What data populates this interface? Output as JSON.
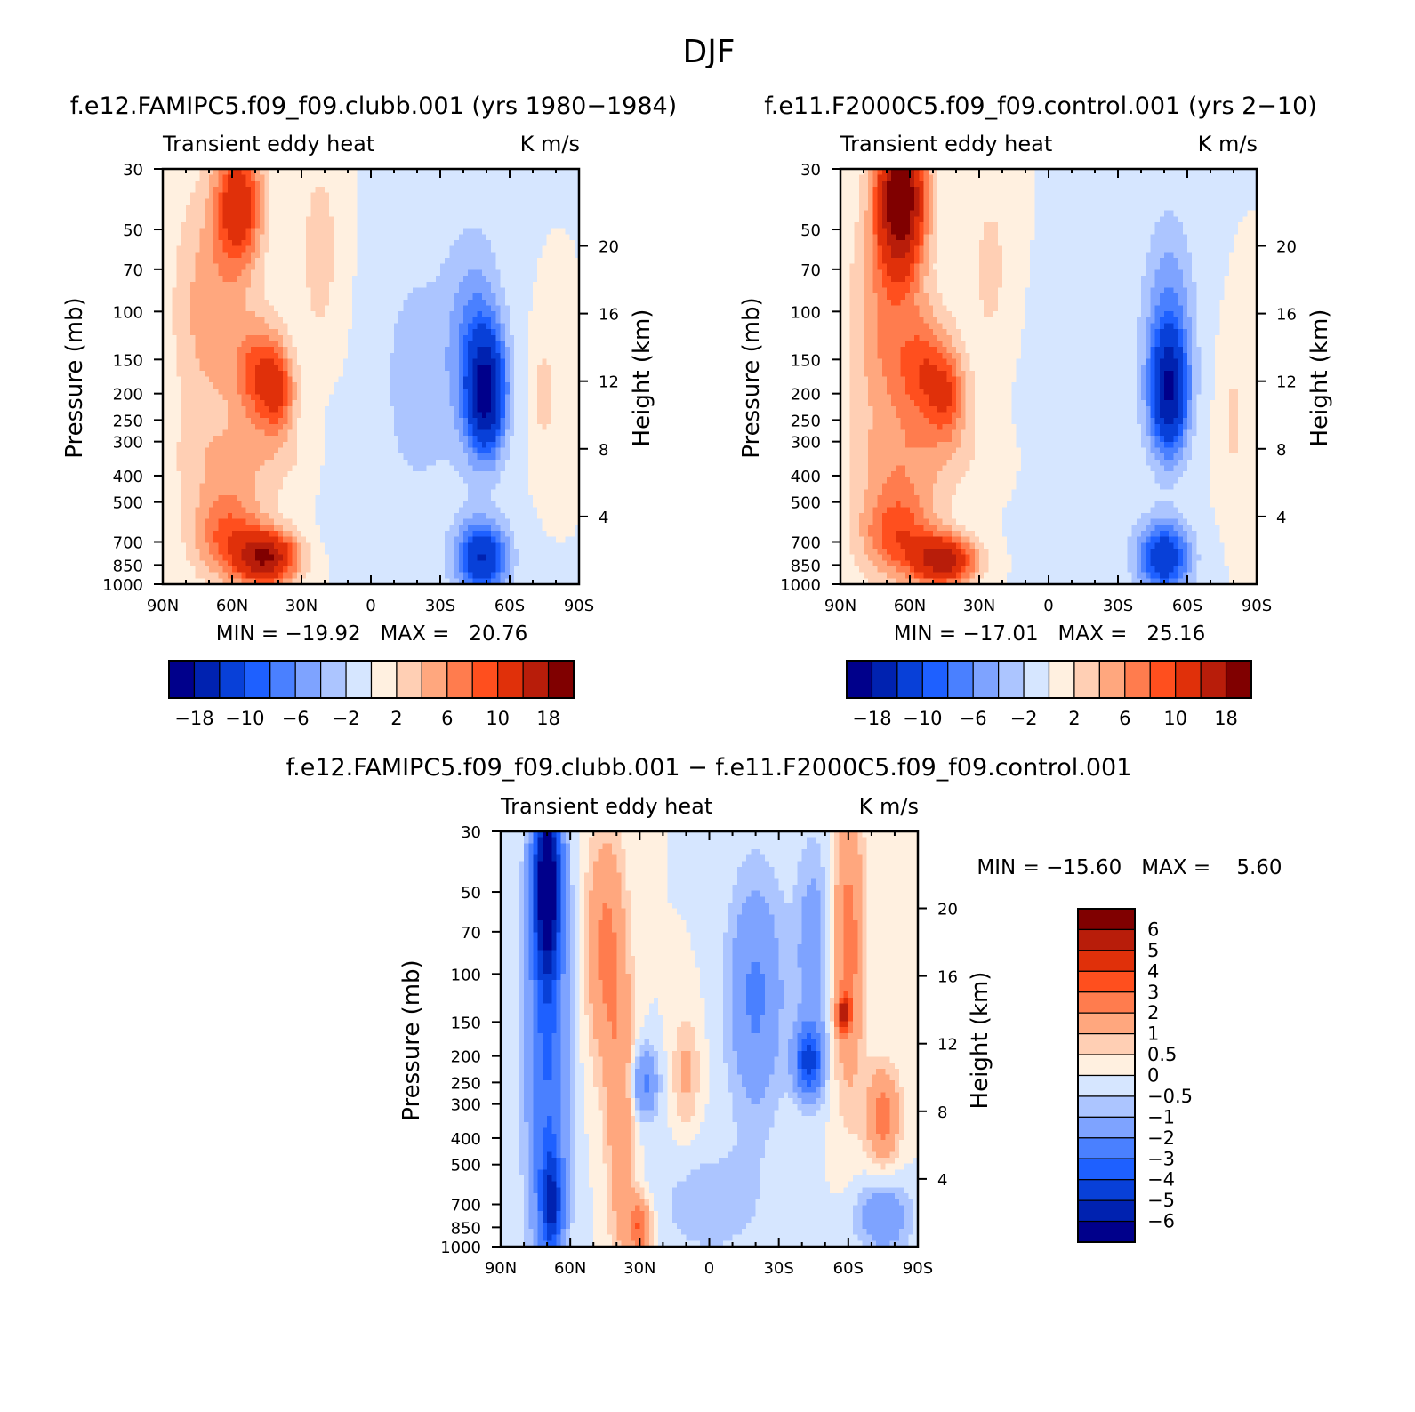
{
  "figure_title": "DJF",
  "colors": {
    "scale_main": [
      "#00008b",
      "#0022b0",
      "#0840d8",
      "#1e60ff",
      "#4a80ff",
      "#7ea3ff",
      "#acc5ff",
      "#d6e6ff",
      "#fff0e0",
      "#ffcfb4",
      "#ffa77e",
      "#ff7c4e",
      "#ff4f1e",
      "#e0300a",
      "#b81d0a",
      "#800000"
    ],
    "scale_diff": [
      "#00008b",
      "#0022b0",
      "#0840d8",
      "#1e60ff",
      "#4a80ff",
      "#7ea3ff",
      "#acc5ff",
      "#d6e6ff",
      "#fff0e0",
      "#ffcfb4",
      "#ffa77e",
      "#ff7c4e",
      "#ff4f1e",
      "#e0300a",
      "#b81d0a",
      "#800000"
    ]
  },
  "chart_data": [
    {
      "type": "heatmap",
      "title": "f.e12.FAMIPC5.f09_f09.clubb.001 (yrs 1980−1984)",
      "left_label": "Transient eddy heat",
      "right_label": "K m/s",
      "xlabel": "",
      "ylabel": "Pressure (mb)",
      "ylabel_right": "Height (km)",
      "x_ticks": [
        "90N",
        "60N",
        "30N",
        "0",
        "30S",
        "60S",
        "90S"
      ],
      "x_range": [
        90,
        -90
      ],
      "y_ticks": [
        "30",
        "50",
        "70",
        "100",
        "150",
        "200",
        "250",
        "300",
        "400",
        "500",
        "700",
        "850",
        "1000"
      ],
      "y_range": [
        1000,
        30
      ],
      "height_ticks": [
        "20",
        "16",
        "12",
        "8",
        "4"
      ],
      "stats": "MIN = −19.92   MAX =   20.76",
      "min": -19.92,
      "max": 20.76,
      "levels": [
        -18,
        -14,
        -10,
        -8,
        -6,
        -4,
        -2,
        0,
        2,
        4,
        6,
        8,
        10,
        14,
        18
      ],
      "colorbar_labels": [
        "−18",
        "−10",
        "−6",
        "−2",
        "2",
        "6",
        "10",
        "18"
      ],
      "colorbar_orientation": "horizontal",
      "features": [
        {
          "lat": 57,
          "p": 40,
          "value": 12,
          "sx": 10,
          "sy": 0.55
        },
        {
          "lat": 70,
          "p": 100,
          "value": 5,
          "sx": 16,
          "sy": 1.1
        },
        {
          "lat": 48,
          "p": 170,
          "value": 9,
          "sx": 11,
          "sy": 0.45
        },
        {
          "lat": 40,
          "p": 200,
          "value": 7,
          "sx": 7,
          "sy": 0.35
        },
        {
          "lat": 45,
          "p": 800,
          "value": 17,
          "sx": 13,
          "sy": 0.22
        },
        {
          "lat": 62,
          "p": 650,
          "value": 8,
          "sx": 16,
          "sy": 0.4
        },
        {
          "lat": 22,
          "p": 60,
          "value": 3,
          "sx": 9,
          "sy": 0.9
        },
        {
          "lat": 55,
          "p": 350,
          "value": 3,
          "sx": 30,
          "sy": 0.35
        },
        {
          "lat": -50,
          "p": 200,
          "value": -17,
          "sx": 8,
          "sy": 0.5
        },
        {
          "lat": -48,
          "p": 800,
          "value": -14,
          "sx": 11,
          "sy": 0.3
        },
        {
          "lat": -45,
          "p": 130,
          "value": -6,
          "sx": 12,
          "sy": 0.9
        },
        {
          "lat": -20,
          "p": 180,
          "value": -3,
          "sx": 18,
          "sy": 1.2
        },
        {
          "lat": 15,
          "p": 400,
          "value": -1.5,
          "sx": 8,
          "sy": 0.6
        },
        {
          "lat": -75,
          "p": 200,
          "value": 3,
          "sx": 5,
          "sy": 0.5
        }
      ]
    },
    {
      "type": "heatmap",
      "title": "f.e11.F2000C5.f09_f09.control.001 (yrs 2−10)",
      "left_label": "Transient eddy heat",
      "right_label": "K m/s",
      "xlabel": "",
      "ylabel": "Pressure (mb)",
      "ylabel_right": "Height (km)",
      "x_ticks": [
        "90N",
        "60N",
        "30N",
        "0",
        "30S",
        "60S",
        "90S"
      ],
      "x_range": [
        90,
        -90
      ],
      "y_ticks": [
        "30",
        "50",
        "70",
        "100",
        "150",
        "200",
        "250",
        "300",
        "400",
        "500",
        "700",
        "850",
        "1000"
      ],
      "y_range": [
        1000,
        30
      ],
      "height_ticks": [
        "20",
        "16",
        "12",
        "8",
        "4"
      ],
      "stats": "MIN = −17.01   MAX =   25.16",
      "min": -17.01,
      "max": 25.16,
      "levels": [
        -18,
        -14,
        -10,
        -8,
        -6,
        -4,
        -2,
        0,
        2,
        4,
        6,
        8,
        10,
        14,
        18
      ],
      "colorbar_labels": [
        "−18",
        "−10",
        "−6",
        "−2",
        "2",
        "6",
        "10",
        "18"
      ],
      "colorbar_orientation": "horizontal",
      "features": [
        {
          "lat": 64,
          "p": 38,
          "value": 22,
          "sx": 10,
          "sy": 0.6
        },
        {
          "lat": 70,
          "p": 120,
          "value": 6,
          "sx": 16,
          "sy": 1.1
        },
        {
          "lat": 52,
          "p": 170,
          "value": 8,
          "sx": 12,
          "sy": 0.5
        },
        {
          "lat": 43,
          "p": 210,
          "value": 6,
          "sx": 8,
          "sy": 0.35
        },
        {
          "lat": 45,
          "p": 820,
          "value": 16,
          "sx": 13,
          "sy": 0.2
        },
        {
          "lat": 65,
          "p": 650,
          "value": 9,
          "sx": 17,
          "sy": 0.4
        },
        {
          "lat": 25,
          "p": 70,
          "value": 2.5,
          "sx": 10,
          "sy": 0.9
        },
        {
          "lat": 55,
          "p": 350,
          "value": 3,
          "sx": 30,
          "sy": 0.35
        },
        {
          "lat": -52,
          "p": 200,
          "value": -15,
          "sx": 8,
          "sy": 0.5
        },
        {
          "lat": -50,
          "p": 800,
          "value": -13,
          "sx": 11,
          "sy": 0.3
        },
        {
          "lat": -52,
          "p": 110,
          "value": -6,
          "sx": 11,
          "sy": 0.9
        },
        {
          "lat": -15,
          "p": 300,
          "value": -1.5,
          "sx": 25,
          "sy": 1.2
        },
        {
          "lat": -80,
          "p": 250,
          "value": 2.5,
          "sx": 6,
          "sy": 0.6
        }
      ]
    },
    {
      "type": "heatmap",
      "title": "f.e12.FAMIPC5.f09_f09.clubb.001 − f.e11.F2000C5.f09_f09.control.001",
      "left_label": "Transient eddy heat",
      "right_label": "K m/s",
      "xlabel": "",
      "ylabel": "Pressure (mb)",
      "ylabel_right": "Height (km)",
      "x_ticks": [
        "90N",
        "60N",
        "30N",
        "0",
        "30S",
        "60S",
        "90S"
      ],
      "x_range": [
        90,
        -90
      ],
      "y_ticks": [
        "30",
        "50",
        "70",
        "100",
        "150",
        "200",
        "250",
        "300",
        "400",
        "500",
        "700",
        "850",
        "1000"
      ],
      "y_range": [
        1000,
        30
      ],
      "height_ticks": [
        "20",
        "16",
        "12",
        "8",
        "4"
      ],
      "stats": "MIN = −15.60   MAX =    5.60",
      "min": -15.6,
      "max": 5.6,
      "levels": [
        -6,
        -5,
        -4,
        -3,
        -2,
        -1,
        -0.5,
        0,
        0.5,
        1,
        2,
        3,
        4,
        5,
        6
      ],
      "colorbar_labels": [
        "6",
        "5",
        "4",
        "3",
        "2",
        "1",
        "0.5",
        "0",
        "−0.5",
        "−1",
        "−2",
        "−3",
        "−4",
        "−5",
        "−6"
      ],
      "colorbar_orientation": "vertical",
      "features": [
        {
          "lat": 70,
          "p": 45,
          "value": -6.5,
          "sx": 6,
          "sy": 0.8
        },
        {
          "lat": 70,
          "p": 200,
          "value": -3,
          "sx": 9,
          "sy": 1.8
        },
        {
          "lat": 68,
          "p": 700,
          "value": -4,
          "sx": 5,
          "sy": 0.45
        },
        {
          "lat": 45,
          "p": 80,
          "value": 2.2,
          "sx": 8,
          "sy": 1.0
        },
        {
          "lat": 38,
          "p": 350,
          "value": 1.8,
          "sx": 6,
          "sy": 1.3
        },
        {
          "lat": 30,
          "p": 850,
          "value": 3,
          "sx": 5,
          "sy": 0.25
        },
        {
          "lat": 28,
          "p": 250,
          "value": -2.2,
          "sx": 6,
          "sy": 0.3
        },
        {
          "lat": 10,
          "p": 230,
          "value": 1.2,
          "sx": 6,
          "sy": 0.5
        },
        {
          "lat": -20,
          "p": 120,
          "value": -2.2,
          "sx": 12,
          "sy": 1.0
        },
        {
          "lat": -43,
          "p": 210,
          "value": -4.2,
          "sx": 6,
          "sy": 0.3
        },
        {
          "lat": -45,
          "p": 80,
          "value": -1.5,
          "sx": 8,
          "sy": 0.9
        },
        {
          "lat": -60,
          "p": 80,
          "value": 2.5,
          "sx": 7,
          "sy": 1.2
        },
        {
          "lat": -58,
          "p": 140,
          "value": 4.5,
          "sx": 3,
          "sy": 0.15
        },
        {
          "lat": -75,
          "p": 330,
          "value": 2.5,
          "sx": 7,
          "sy": 0.4
        },
        {
          "lat": -75,
          "p": 780,
          "value": -1.8,
          "sx": 12,
          "sy": 0.3
        },
        {
          "lat": 0,
          "p": 700,
          "value": -0.8,
          "sx": 25,
          "sy": 0.5
        }
      ]
    }
  ]
}
